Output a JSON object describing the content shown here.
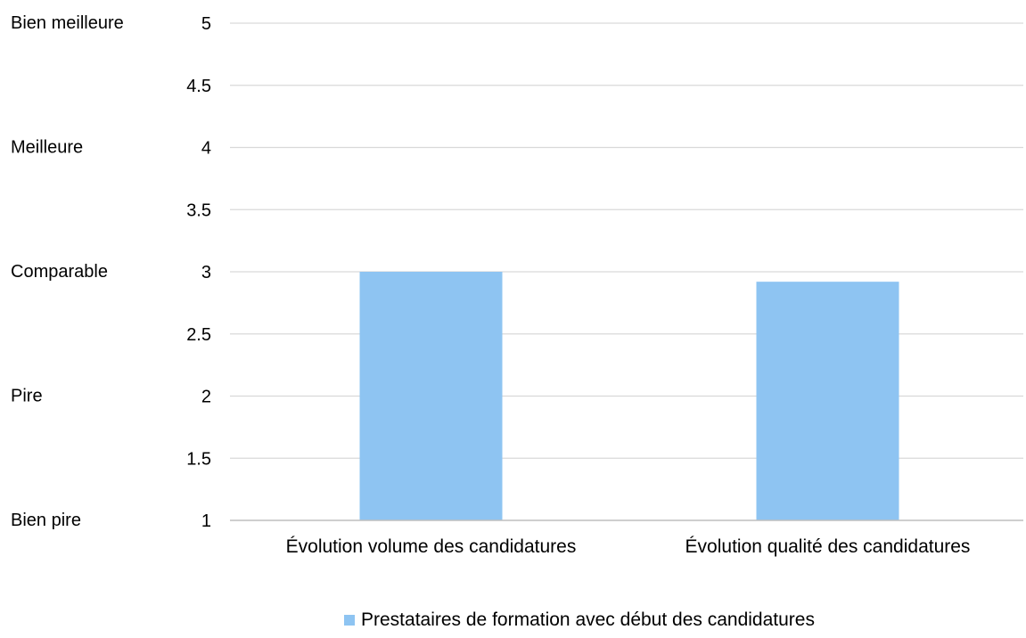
{
  "chart_data": {
    "type": "bar",
    "categories": [
      "Évolution volume des candidatures",
      "Évolution qualité des candidatures"
    ],
    "series": [
      {
        "name": "Prestataires de formation avec début des candidatures",
        "values": [
          3.0,
          2.92
        ],
        "color": "#8ec4f2"
      }
    ],
    "ylim": [
      1,
      5
    ],
    "yticks": [
      "1",
      "1.5",
      "2",
      "2.5",
      "3",
      "3.5",
      "4",
      "4.5",
      "5"
    ],
    "scale_labels": [
      {
        "value": 5,
        "label": "Bien meilleure"
      },
      {
        "value": 4,
        "label": "Meilleure"
      },
      {
        "value": 3,
        "label": "Comparable"
      },
      {
        "value": 2,
        "label": "Pire"
      },
      {
        "value": 1,
        "label": "Bien pire"
      }
    ],
    "grid": true,
    "legend": "bottom-center",
    "gridline_color": "#d9d9d9",
    "axis_color": "#bfbfbf"
  }
}
